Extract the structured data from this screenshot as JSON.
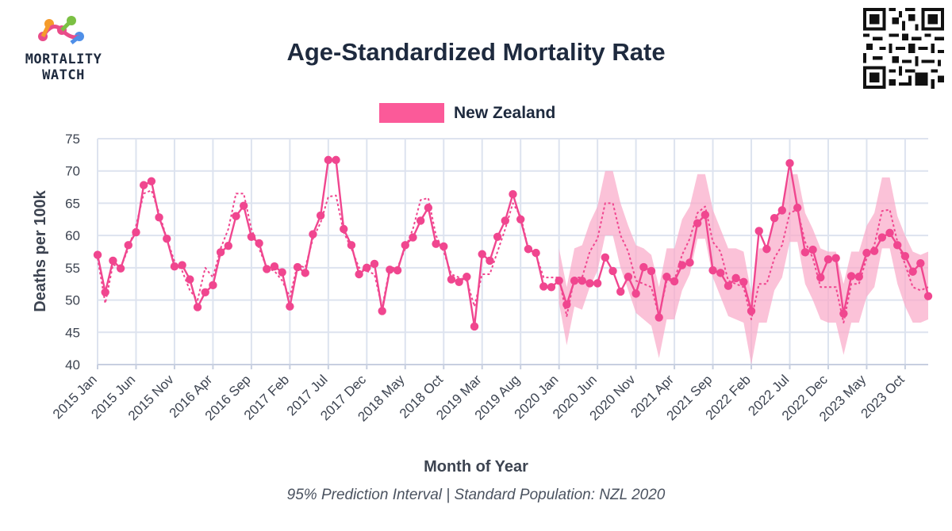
{
  "logo": {
    "line1": "MORTALITY",
    "line2": "WATCH"
  },
  "title": "Age-Standardized Mortality Rate",
  "legend": {
    "label": "New Zealand",
    "color": "#fb5a99"
  },
  "caption": "95% Prediction Interval | Standard Population: NZL 2020",
  "chart_data": {
    "type": "line",
    "title": "Age-Standardized Mortality Rate",
    "xlabel": "Month of Year",
    "ylabel": "Deaths per 100k",
    "ylim": [
      40,
      75
    ],
    "y_ticks": [
      40,
      45,
      50,
      55,
      60,
      65,
      70,
      75
    ],
    "x_start": "2015 Jan",
    "x_tick_labels": [
      "2015 Jan",
      "2015 Jun",
      "2015 Nov",
      "2016 Apr",
      "2016 Sep",
      "2017 Feb",
      "2017 Jul",
      "2017 Dec",
      "2018 May",
      "2018 Oct",
      "2019 Mar",
      "2019 Aug",
      "2020 Jan",
      "2020 Jun",
      "2020 Nov",
      "2021 Apr",
      "2021 Sep",
      "2022 Feb",
      "2022 Jul",
      "2022 Dec",
      "2023 May",
      "2023 Oct"
    ],
    "grid": true,
    "legend_position": "top-center",
    "series": [
      {
        "name": "New Zealand",
        "color": "#f0468f",
        "style": "solid-markers",
        "values": [
          57.0,
          51.2,
          56.1,
          54.9,
          58.5,
          60.5,
          67.8,
          68.4,
          62.8,
          59.5,
          55.2,
          55.4,
          53.2,
          48.9,
          51.2,
          52.3,
          57.4,
          58.4,
          63.0,
          64.6,
          59.8,
          58.8,
          54.8,
          55.2,
          54.3,
          49.0,
          55.1,
          54.2,
          60.2,
          63.1,
          71.7,
          71.7,
          61.0,
          58.5,
          54.0,
          55.0,
          55.6,
          48.3,
          54.7,
          54.6,
          58.5,
          59.7,
          62.3,
          64.3,
          58.7,
          58.3,
          53.2,
          52.8,
          53.6,
          45.9,
          57.1,
          56.1,
          59.8,
          62.3,
          66.4,
          62.5,
          57.9,
          57.3,
          52.1,
          52.0,
          53.0,
          49.3,
          53.0,
          53.0,
          52.6,
          52.6,
          56.6,
          54.5,
          51.3,
          53.6,
          51.0,
          55.1,
          54.5,
          47.3,
          53.6,
          52.9,
          55.4,
          55.8,
          61.9,
          63.2,
          54.6,
          54.2,
          52.2,
          53.4,
          52.8,
          48.3,
          60.7,
          57.9,
          62.7,
          63.9,
          71.2,
          64.3,
          57.4,
          57.8,
          53.5,
          56.3,
          56.5,
          47.9,
          53.7,
          53.6,
          57.3,
          57.6,
          59.7,
          60.4,
          58.5,
          56.8,
          54.4,
          55.7,
          50.6
        ]
      },
      {
        "name": "Baseline",
        "color": "#f0468f",
        "style": "dotted",
        "values": [
          56.5,
          49.5,
          55.5,
          55.0,
          58.0,
          61.5,
          66.5,
          67.0,
          63.5,
          59.5,
          56.0,
          54.5,
          51.5,
          50.0,
          55.0,
          53.5,
          58.0,
          61.0,
          66.5,
          66.5,
          61.0,
          58.0,
          55.0,
          54.5,
          53.0,
          50.5,
          55.5,
          55.0,
          59.5,
          62.0,
          66.0,
          66.2,
          60.5,
          58.0,
          55.0,
          54.5,
          54.0,
          48.8,
          55.0,
          55.0,
          58.0,
          61.0,
          65.5,
          65.8,
          60.0,
          57.5,
          54.0,
          53.5,
          53.0,
          49.0,
          54.0,
          54.0,
          57.5,
          61.0,
          65.0,
          63.0,
          58.0,
          57.0,
          53.5,
          53.5,
          53.5,
          47.5,
          53.5,
          53.5,
          57.5,
          59.5,
          65.0,
          65.0,
          60.0,
          57.5,
          53.0,
          52.5,
          52.0,
          47.5,
          53.0,
          53.0,
          57.0,
          59.5,
          63.5,
          64.5,
          59.0,
          57.5,
          53.0,
          52.5,
          52.0,
          47.0,
          52.5,
          52.5,
          56.5,
          58.5,
          63.5,
          64.0,
          59.0,
          56.5,
          52.0,
          52.0,
          52.0,
          46.5,
          52.5,
          52.5,
          56.5,
          58.5,
          63.8,
          64.0,
          59.0,
          55.5,
          52.0,
          51.5,
          52.0
        ]
      }
    ],
    "prediction_interval": {
      "start_index": 60,
      "lower": [
        49.5,
        43.0,
        49.0,
        48.5,
        52.0,
        54.5,
        60.0,
        60.0,
        55.0,
        51.5,
        48.0,
        47.0,
        46.0,
        41.0,
        47.0,
        47.0,
        51.5,
        54.0,
        59.5,
        59.5,
        53.5,
        50.5,
        47.5,
        47.0,
        46.5,
        40.0,
        46.5,
        46.5,
        51.5,
        53.5,
        59.0,
        59.0,
        52.5,
        50.0,
        47.0,
        46.5,
        46.5,
        41.5,
        46.5,
        46.5,
        50.5,
        52.0,
        58.0,
        58.0,
        52.5,
        49.0,
        46.5,
        46.5,
        47.0
      ],
      "upper": [
        58.0,
        52.0,
        58.0,
        58.5,
        62.0,
        64.5,
        70.0,
        70.0,
        65.0,
        61.5,
        58.5,
        58.0,
        57.0,
        52.0,
        58.0,
        58.0,
        62.5,
        64.5,
        69.5,
        69.5,
        64.0,
        61.0,
        58.0,
        58.0,
        57.5,
        51.0,
        58.0,
        58.0,
        62.5,
        64.5,
        69.5,
        69.5,
        63.5,
        61.0,
        58.0,
        57.5,
        57.5,
        52.5,
        57.5,
        57.5,
        61.5,
        63.5,
        69.0,
        69.0,
        63.0,
        60.0,
        57.5,
        57.0,
        57.5
      ]
    }
  }
}
